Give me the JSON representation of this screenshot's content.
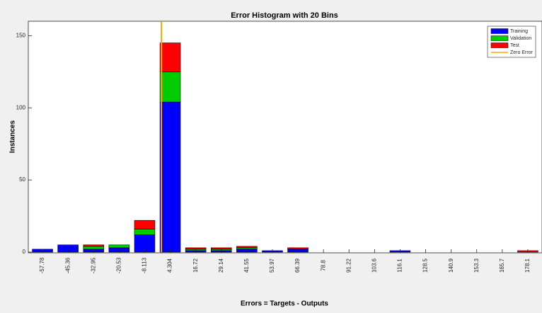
{
  "chart_data": {
    "type": "stacked_bar",
    "title": "Error Histogram with 20 Bins",
    "x_label": "Errors = Targets - Outputs",
    "y_label": "Instances",
    "categories": [
      "-57.78",
      "-45.36",
      "-32.95",
      "-20.53",
      "-8.113",
      "4.304",
      "16.72",
      "29.14",
      "41.55",
      "53.97",
      "66.39",
      "78.8",
      "91.22",
      "103.6",
      "116.1",
      "128.5",
      "140.9",
      "153.3",
      "165.7",
      "178.1"
    ],
    "series": [
      {
        "name": "Training",
        "color": "#0000ff",
        "values": [
          2,
          5,
          2,
          3,
          12,
          104,
          1,
          1,
          2,
          1,
          2,
          0,
          0,
          0,
          1,
          0,
          0,
          0,
          0,
          0
        ]
      },
      {
        "name": "Validation",
        "color": "#00cc00",
        "values": [
          0,
          0,
          2,
          2,
          4,
          21,
          1,
          1,
          1,
          0,
          0,
          0,
          0,
          0,
          0,
          0,
          0,
          0,
          0,
          0
        ]
      },
      {
        "name": "Test",
        "color": "#ff0000",
        "values": [
          0,
          0,
          1,
          0,
          6,
          20,
          1,
          1,
          1,
          0,
          1,
          0,
          0,
          0,
          0,
          0,
          0,
          0,
          0,
          1
        ]
      }
    ],
    "reference_line": {
      "name": "Zero Error",
      "value": 0,
      "color": "#ffa500"
    },
    "ylim": [
      0,
      160
    ],
    "yticks": [
      0,
      50,
      100,
      150
    ],
    "legend": "top-right"
  }
}
